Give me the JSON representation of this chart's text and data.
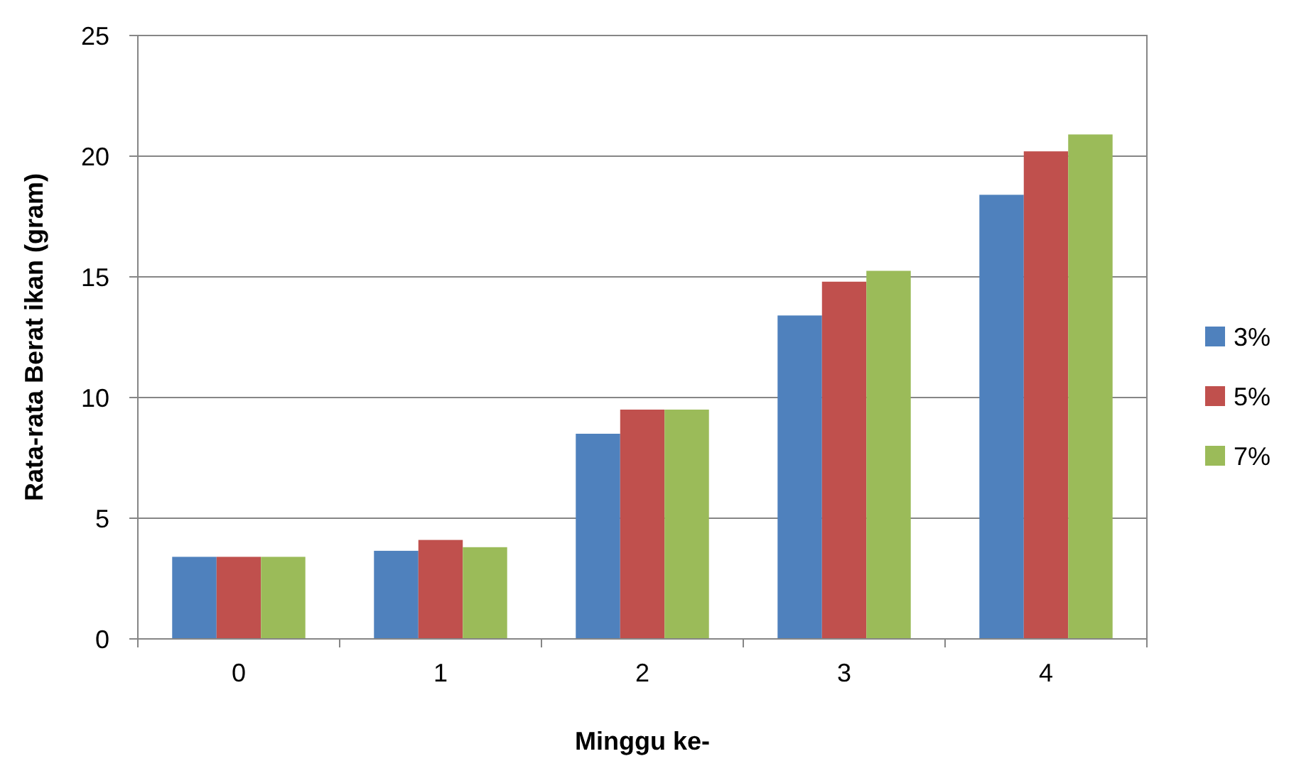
{
  "chart_data": {
    "type": "bar",
    "xlabel": "Minggu ke-",
    "ylabel": "Rata-rata Berat ikan (gram)",
    "categories": [
      "0",
      "1",
      "2",
      "3",
      "4"
    ],
    "series": [
      {
        "name": "3%",
        "color": "#4f81bd",
        "values": [
          3.4,
          3.65,
          8.5,
          13.4,
          18.4
        ]
      },
      {
        "name": "5%",
        "color": "#c0504d",
        "values": [
          3.4,
          4.1,
          9.5,
          14.8,
          20.2
        ]
      },
      {
        "name": "7%",
        "color": "#9bbb59",
        "values": [
          3.4,
          3.8,
          9.5,
          15.25,
          20.9
        ]
      }
    ],
    "ylim": [
      0,
      25
    ],
    "yticks": [
      0,
      5,
      10,
      15,
      20,
      25
    ],
    "grid": "y",
    "legend": "right"
  }
}
